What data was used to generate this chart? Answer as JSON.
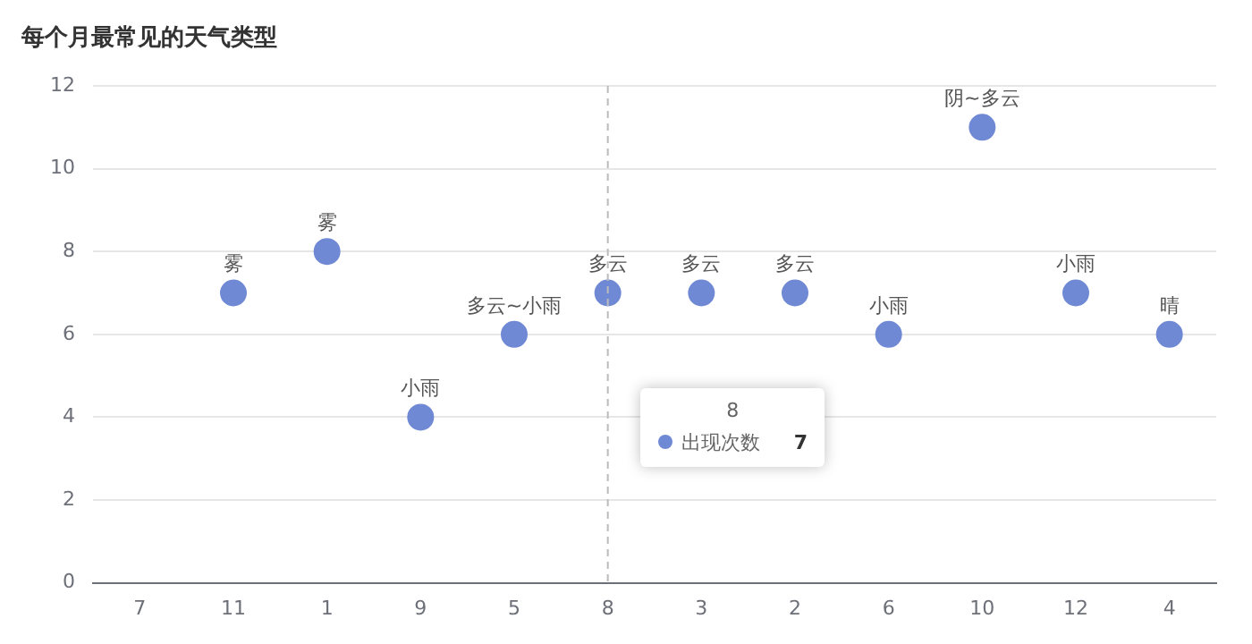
{
  "chart_data": {
    "type": "scatter",
    "title": "每个月最常见的天气类型",
    "categories": [
      "7",
      "11",
      "1",
      "9",
      "5",
      "8",
      "3",
      "2",
      "6",
      "10",
      "12",
      "4"
    ],
    "series": [
      {
        "name": "出现次数",
        "color": "#7089d4",
        "values": [
          null,
          7,
          8,
          4,
          6,
          7,
          7,
          7,
          6,
          11,
          7,
          6
        ],
        "value_labels": [
          null,
          "雾",
          "雾",
          "小雨",
          "多云~小雨",
          "多云",
          "多云",
          "多云",
          "小雨",
          "阴~多云",
          "小雨",
          "晴"
        ]
      }
    ],
    "ylim": [
      0,
      12
    ],
    "yticks": [
      0,
      2,
      4,
      6,
      8,
      10,
      12
    ],
    "grid": "y",
    "legend": "bottom",
    "marker": "circle",
    "ref_lines": [
      {
        "axis": "x",
        "value": "8",
        "color": "#bbbbbb",
        "line_style": "dashed"
      }
    ]
  }
}
